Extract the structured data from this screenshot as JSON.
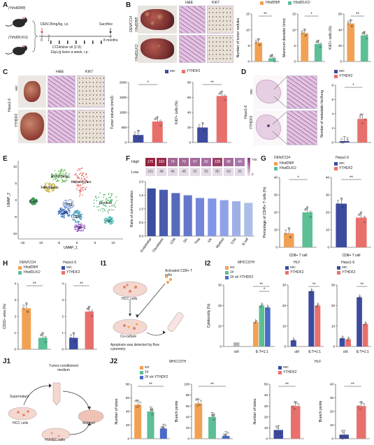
{
  "panels": {
    "A": "A",
    "B": "B",
    "C": "C",
    "D": "D",
    "E": "E",
    "F": "F",
    "G": "G",
    "H": "H",
    "I1": "I1",
    "I2": "I2",
    "J1": "J1",
    "J2": "J2"
  },
  "colors": {
    "wt": "#f2a154",
    "ko": "#5cbf95",
    "vec": "#3c4aa0",
    "ythdf2": "#e8706c",
    "scr": "#f2a154",
    "sh1": "#5cbf95",
    "sh2": "#4c6bc8",
    "ctrl": "#b4b4b4"
  },
  "panelA": {
    "mouse_wt": "(Ythdf2fl/fl)",
    "mouse_ko": "(Ythdf2LKO)",
    "den": "DEN:25mg/kg, i.p.",
    "sacrifice": "Sacrifice",
    "t0": "0",
    "t1": "1",
    "t8": "8 months",
    "ccl4": "CCl4/olive oil (1:9):",
    "dose": "10μL/g twice a week, i.p."
  },
  "panelB": {
    "group": "DEN/CCl4",
    "row_wt": "Ythdf2fl/fl",
    "row_ko": "Ythdf2LKO",
    "he": "H&E",
    "ki67": "Ki67",
    "legend": [
      "Ythdf2fl/fl",
      "Ythdf2LKO"
    ],
    "sig": [
      "**",
      "*",
      "**"
    ]
  },
  "panelC": {
    "side": "Hepa1-6",
    "row_vec": "vec",
    "row_y": "YTHDF2",
    "he": "H&E",
    "ki67": "Ki67",
    "legend": [
      "vec",
      "YTHDF2"
    ],
    "sig": [
      "*",
      "**"
    ]
  },
  "panelD": {
    "side": "Hepa1-6",
    "row_vec": "vec",
    "row_y": "YTHDF2",
    "legend": [
      "vec",
      "YTHDF2"
    ],
    "sig": "*"
  },
  "panelE": {
    "clusters": [
      "Endothelial",
      "Hepatocytes",
      "Fibroblasts",
      "B cell",
      "Myeloid",
      "Treg",
      "CD4",
      "CD8",
      "NK",
      "DC"
    ]
  },
  "panelF": {
    "high": "High",
    "low": "Low",
    "scale": [
      "700",
      "0"
    ],
    "cells": [
      "Endothelial",
      "Fibroblasts",
      "CD8",
      "DC",
      "Treg",
      "NK",
      "Myeloid",
      "CD4",
      "B cell"
    ],
    "high_values": [
      "175",
      "162",
      "74",
      "72",
      "67",
      "62",
      "129",
      "68",
      "44"
    ],
    "low_values": [
      "101",
      "48",
      "46",
      "48",
      "52",
      "55",
      "80",
      "59",
      "36"
    ]
  },
  "panelG": {
    "sub1": "DEN/CCl4",
    "sub2": "Hepa1-6",
    "legend1": [
      "Ythdf2fl/fl",
      "Ythdf2LKO"
    ],
    "legend2": [
      "vec",
      "YTHDF2"
    ],
    "xlabel": "CD8+ T cell",
    "sig": [
      "*",
      "**"
    ]
  },
  "panelH": {
    "sub1": "DEN/CCl4",
    "sub2": "Hepa1-6",
    "legend1": [
      "Ythdf2fl/fl",
      "Ythdf2LKO"
    ],
    "legend2": [
      "vec",
      "YTHDF2"
    ],
    "sig": [
      "**",
      "**"
    ]
  },
  "panelI1": {
    "tcells": "Activated CD8+ T cells",
    "hcc": "HCC cells",
    "coculture": "Co-culture",
    "apoptosis": "Apoptosis was detected by flow cytometry"
  },
  "panelI2": {
    "sub1": "MHCC97H",
    "sub2": "HLF",
    "sub3": "Hepa1-6",
    "legend1": [
      "scr",
      "1#",
      "2# sh-YTHDF2"
    ],
    "legend2": [
      "vec",
      "YTHDF2"
    ],
    "xcats": [
      "ctrl",
      "E:T=1:1"
    ],
    "sig": [
      "**",
      "*",
      "**",
      "**"
    ]
  },
  "panelJ1": {
    "medium": "Tumor-conditioned medium",
    "supernatant": "Supernatant",
    "hcc": "HCC cells",
    "huvec": "HUVEC cells",
    "matrigel": "Matrigel"
  },
  "panelJ2": {
    "sub1": "MHCC97H",
    "sub2": "HLF",
    "legend1": [
      "scr",
      "1#",
      "2# sh-YTHDF2"
    ],
    "legend2": [
      "vec",
      "YTHDF2"
    ],
    "sig": [
      "**",
      "*",
      "**",
      "**",
      "**",
      "**"
    ]
  },
  "chart_data": [
    {
      "type": "bar",
      "panel": "B",
      "categories": [
        "Ythdf2fl/fl",
        "Ythdf2LKO"
      ],
      "values": [
        6,
        1
      ],
      "ylabel": "Number of tumor nodules",
      "ylim": [
        0,
        15
      ],
      "yticks": [
        "0",
        "5",
        "10",
        "15"
      ]
    },
    {
      "type": "bar",
      "panel": "B",
      "categories": [
        "Ythdf2fl/fl",
        "Ythdf2LKO"
      ],
      "values": [
        9,
        5.5
      ],
      "ylabel": "Maximum diameter (mm)",
      "ylim": [
        0,
        15
      ],
      "yticks": [
        "0",
        "5",
        "10",
        "15"
      ]
    },
    {
      "type": "bar",
      "panel": "B",
      "categories": [
        "Ythdf2fl/fl",
        "Ythdf2LKO"
      ],
      "values": [
        48,
        33
      ],
      "ylabel": "Ki67+ cells (%)",
      "ylim": [
        0,
        60
      ],
      "yticks": [
        "0",
        "20",
        "40",
        "60"
      ]
    },
    {
      "type": "bar",
      "panel": "C",
      "categories": [
        "vec",
        "YTHDF2"
      ],
      "values": [
        250,
        700
      ],
      "ylabel": "Tumor volume (mm3)",
      "ylim": [
        0,
        2000
      ],
      "yticks": [
        "0",
        "500",
        "1000",
        "1500",
        "2000"
      ]
    },
    {
      "type": "bar",
      "panel": "C",
      "categories": [
        "vec",
        "YTHDF2"
      ],
      "values": [
        20,
        62
      ],
      "ylabel": "Ki67+ cells (%)",
      "ylim": [
        0,
        80
      ],
      "yticks": [
        "0",
        "20",
        "40",
        "60",
        "80"
      ]
    },
    {
      "type": "bar",
      "panel": "D",
      "categories": [
        "vec",
        "YTHDF2"
      ],
      "values": [
        0.2,
        3.3
      ],
      "ylabel": "Number of metastatic foci/lung",
      "ylim": [
        0,
        8
      ],
      "yticks": [
        "0",
        "2",
        "4",
        "6",
        "8"
      ]
    },
    {
      "type": "bar",
      "panel": "F",
      "categories": [
        "Endothelial",
        "Fibroblasts",
        "CD8",
        "DC",
        "Treg",
        "NK",
        "Myeloid",
        "CD4",
        "B cell"
      ],
      "values": [
        1.75,
        1.7,
        1.58,
        1.5,
        1.4,
        1.38,
        1.32,
        1.28,
        1.22
      ],
      "ylabel": "Ratio of communication",
      "ylim": [
        0,
        2
      ],
      "yticks": [
        "0.0",
        "0.5",
        "1.0",
        "1.5",
        "2.0"
      ]
    },
    {
      "type": "bar",
      "panel": "G",
      "categories": [
        "Ythdf2fl/fl",
        "Ythdf2LKO"
      ],
      "values": [
        8,
        20
      ],
      "ylabel": "Percentage of CD45+ T cells (%)",
      "ylim": [
        0,
        40
      ],
      "yticks": [
        "0",
        "10",
        "20",
        "30",
        "40"
      ]
    },
    {
      "type": "bar",
      "panel": "G",
      "categories": [
        "vec",
        "YTHDF2"
      ],
      "values": [
        25,
        17
      ],
      "ylim": [
        0,
        40
      ],
      "yticks": [
        "0",
        "10",
        "20",
        "30",
        "40"
      ]
    },
    {
      "type": "bar",
      "panel": "H",
      "categories": [
        "Ythdf2fl/fl",
        "Ythdf2LKO"
      ],
      "values": [
        2.5,
        0.7
      ],
      "ylabel": "CD31+ area (%)",
      "ylim": [
        0,
        4
      ],
      "yticks": [
        "0",
        "1",
        "2",
        "3",
        "4"
      ]
    },
    {
      "type": "bar",
      "panel": "H",
      "categories": [
        "vec",
        "YTHDF2"
      ],
      "values": [
        0.7,
        2.3
      ],
      "ylim": [
        0,
        4
      ],
      "yticks": [
        "0",
        "1",
        "2",
        "3",
        "4"
      ]
    },
    {
      "type": "bar",
      "panel": "I2",
      "categories": [
        "ctrl",
        "E:T=1:1"
      ],
      "series": [
        {
          "name": "scr",
          "values": [
            0,
            12
          ]
        },
        {
          "name": "1#",
          "values": [
            0,
            20
          ]
        },
        {
          "name": "2# sh-YTHDF2",
          "values": [
            0,
            19
          ]
        }
      ],
      "ctrl_value": 2,
      "ylabel": "Cytotoxicity (%)",
      "ylim": [
        0,
        30
      ],
      "yticks": [
        "0",
        "10",
        "20",
        "30"
      ]
    },
    {
      "type": "bar",
      "panel": "I2",
      "categories": [
        "ctrl",
        "E:T=1:1"
      ],
      "series": [
        {
          "name": "vec",
          "values": [
            3,
            27
          ]
        },
        {
          "name": "YTHDF2",
          "values": [
            0,
            20
          ]
        }
      ],
      "ylim": [
        0,
        30
      ],
      "yticks": [
        "0",
        "10",
        "20",
        "30"
      ]
    },
    {
      "type": "bar",
      "panel": "I2",
      "categories": [
        "ctrl",
        "E:T=1:1"
      ],
      "series": [
        {
          "name": "vec",
          "values": [
            4,
            24
          ]
        },
        {
          "name": "YTHDF2",
          "values": [
            3.5,
            11
          ]
        }
      ],
      "ylim": [
        0,
        30
      ],
      "yticks": [
        "0",
        "10",
        "20",
        "30"
      ]
    },
    {
      "type": "bar",
      "panel": "J2",
      "categories": [
        "scr",
        "1#",
        "2# sh-YTHDF2"
      ],
      "values": [
        50,
        40,
        15
      ],
      "ylabel": "Number of tubes",
      "ylim": [
        0,
        80
      ],
      "yticks": [
        "0",
        "20",
        "40",
        "60",
        "80"
      ]
    },
    {
      "type": "bar",
      "panel": "J2",
      "categories": [
        "scr",
        "1#",
        "2# sh-YTHDF2"
      ],
      "values": [
        65,
        40,
        5
      ],
      "ylabel": "Branch points",
      "ylim": [
        0,
        100
      ],
      "yticks": [
        "0",
        "20",
        "40",
        "60",
        "80",
        "100"
      ]
    },
    {
      "type": "bar",
      "panel": "J2",
      "categories": [
        "vec",
        "YTHDF2"
      ],
      "values": [
        8,
        30
      ],
      "ylabel": "Number of tubes",
      "ylim": [
        0,
        50
      ],
      "yticks": [
        "0",
        "10",
        "20",
        "30",
        "40",
        "50"
      ]
    },
    {
      "type": "bar",
      "panel": "J2",
      "categories": [
        "vec",
        "YTHDF2"
      ],
      "values": [
        3,
        24
      ],
      "ylabel": "Branch points",
      "ylim": [
        0,
        40
      ],
      "yticks": [
        "0",
        "10",
        "20",
        "30",
        "40"
      ]
    }
  ]
}
